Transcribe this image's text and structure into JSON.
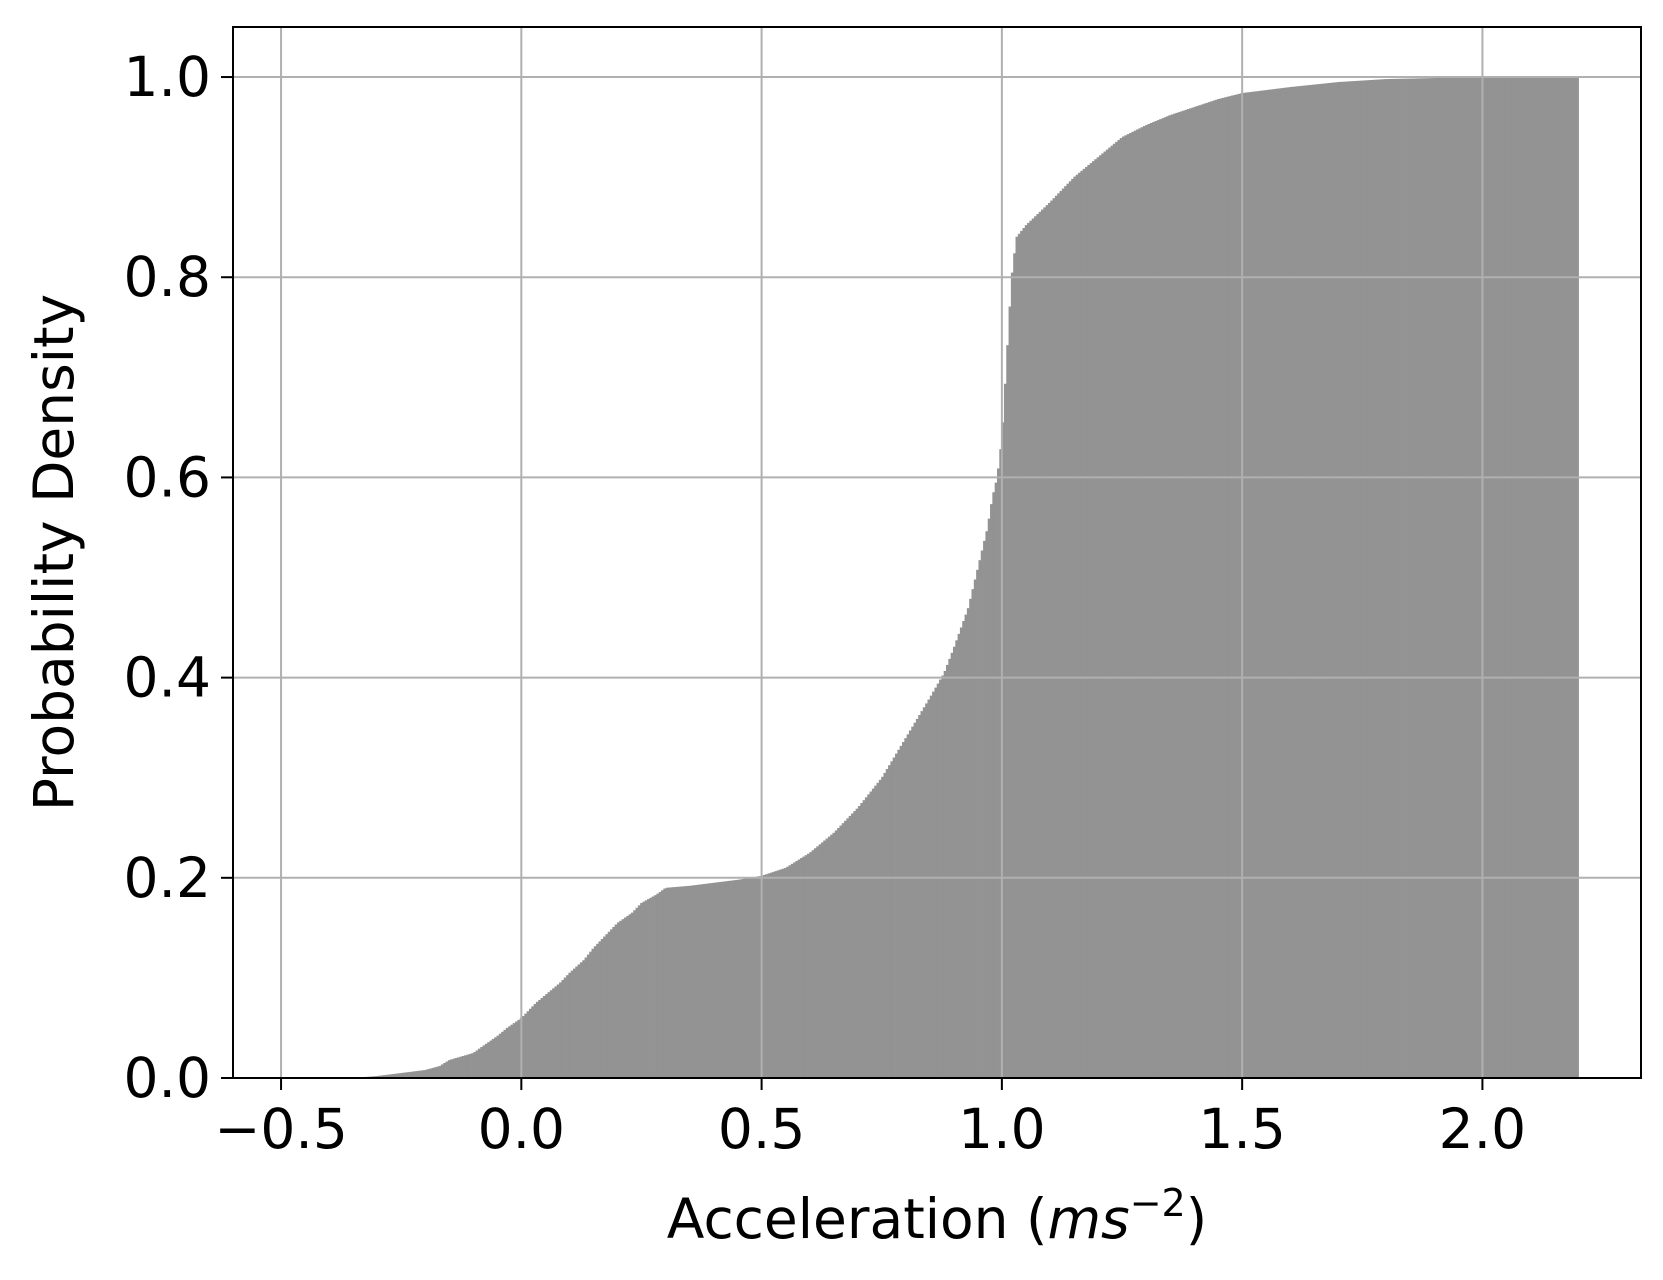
{
  "chart_data": {
    "type": "bar",
    "title": "",
    "xlabel": {
      "prefix": "Acceleration (",
      "unit_main": "ms",
      "unit_exp": "−2",
      "suffix": ")"
    },
    "ylabel": "Probability Density",
    "xlim": [
      -0.6,
      2.33
    ],
    "ylim": [
      0,
      1.05
    ],
    "xticks": [
      -0.5,
      0.0,
      0.5,
      1.0,
      1.5,
      2.0
    ],
    "xtick_labels": [
      "−0.5",
      "0.0",
      "0.5",
      "1.0",
      "1.5",
      "2.0"
    ],
    "yticks": [
      0.0,
      0.2,
      0.4,
      0.6,
      0.8,
      1.0
    ],
    "ytick_labels": [
      "0.0",
      "0.2",
      "0.4",
      "0.6",
      "0.8",
      "1.0"
    ],
    "grid": true,
    "bar_color": "#939393",
    "grid_color": "#b0b0b0",
    "series": [
      {
        "x": [
          -0.5,
          -0.4,
          -0.35,
          -0.3,
          -0.25,
          -0.2,
          -0.17,
          -0.15,
          -0.1,
          -0.08,
          -0.05,
          -0.03,
          0.0,
          0.03,
          0.05,
          0.08,
          0.1,
          0.13,
          0.15,
          0.18,
          0.2,
          0.23,
          0.25,
          0.28,
          0.3,
          0.35,
          0.4,
          0.45,
          0.5,
          0.55,
          0.6,
          0.65,
          0.7,
          0.75,
          0.8,
          0.85,
          0.88,
          0.9,
          0.93,
          0.95,
          0.97,
          0.98,
          0.99,
          1.0,
          1.005,
          1.01,
          1.015,
          1.02,
          1.03,
          1.05,
          1.1,
          1.15,
          1.2,
          1.25,
          1.3,
          1.35,
          1.4,
          1.45,
          1.5,
          1.6,
          1.7,
          1.8,
          1.9,
          2.0,
          2.1,
          2.2
        ],
        "values": [
          0.0,
          0.0,
          0.0,
          0.002,
          0.005,
          0.008,
          0.012,
          0.018,
          0.025,
          0.032,
          0.042,
          0.05,
          0.06,
          0.075,
          0.083,
          0.095,
          0.105,
          0.118,
          0.13,
          0.145,
          0.155,
          0.165,
          0.175,
          0.183,
          0.19,
          0.192,
          0.195,
          0.198,
          0.202,
          0.21,
          0.225,
          0.245,
          0.27,
          0.3,
          0.34,
          0.38,
          0.405,
          0.43,
          0.47,
          0.51,
          0.55,
          0.58,
          0.6,
          0.64,
          0.68,
          0.72,
          0.76,
          0.8,
          0.84,
          0.852,
          0.875,
          0.9,
          0.92,
          0.94,
          0.952,
          0.962,
          0.97,
          0.978,
          0.984,
          0.99,
          0.995,
          0.998,
          0.999,
          1.0,
          1.0,
          1.0
        ]
      }
    ]
  }
}
